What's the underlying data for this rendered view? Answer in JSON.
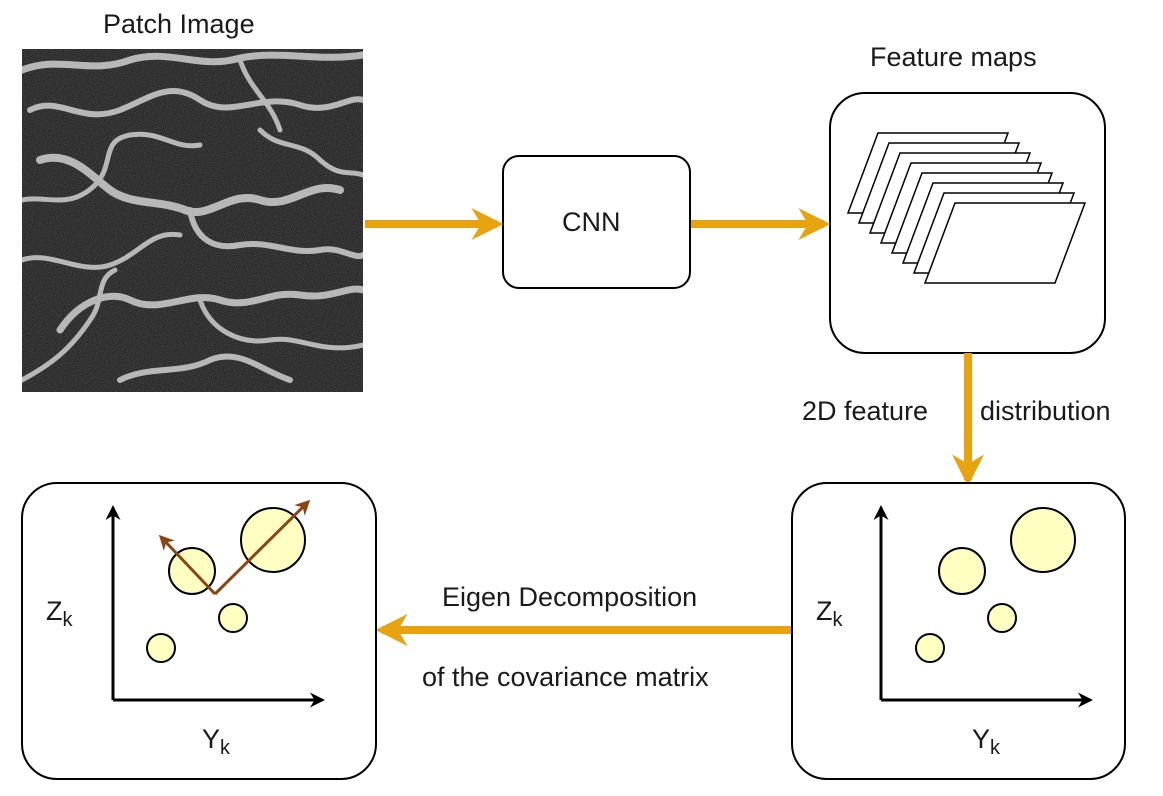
{
  "labels": {
    "patch_image": "Patch Image",
    "cnn": "CNN",
    "feature_maps": "Feature maps",
    "feature_distribution_left": "2D feature",
    "feature_distribution_right": "distribution",
    "eigen_line1": "Eigen Decomposition",
    "eigen_line2": "of the covariance matrix"
  },
  "plots": {
    "right": {
      "y_axis": "Z",
      "y_axis_sub": "k",
      "x_axis": "Y",
      "x_axis_sub": "k"
    },
    "left": {
      "y_axis": "Z",
      "y_axis_sub": "k",
      "x_axis": "Y",
      "x_axis_sub": "k"
    }
  },
  "colors": {
    "arrow": "#e8a40f",
    "eigen_arrow": "#8b4513",
    "circle_fill": "#ffffc2",
    "stroke": "#000000"
  },
  "feature_map_count": 8
}
